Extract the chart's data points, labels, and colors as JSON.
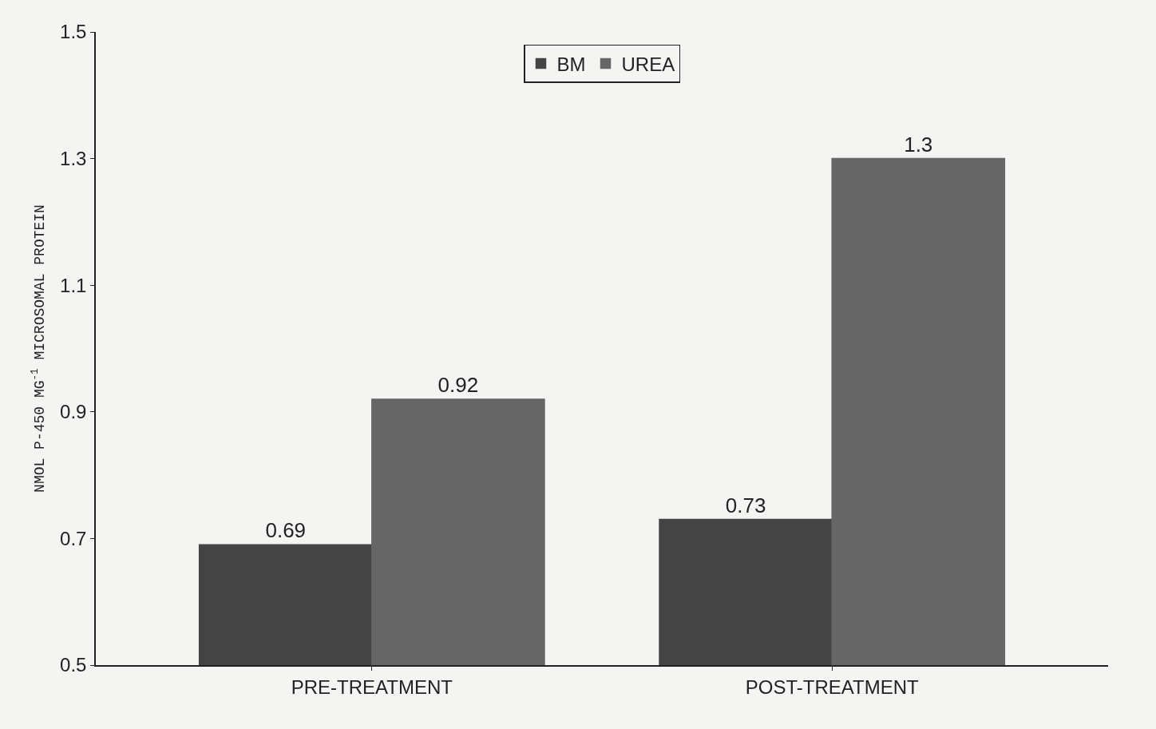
{
  "chart_data": {
    "type": "bar",
    "ylabel": "NMOL P-450 MG$^{-1}$ MICROSOMAL PROTEIN",
    "categories": [
      "PRE-TREATMENT",
      "POST-TREATMENT"
    ],
    "series": [
      {
        "name": "BM",
        "color": "#444444",
        "values": [
          0.69,
          0.73
        ]
      },
      {
        "name": "UREA",
        "color": "#666666",
        "values": [
          0.92,
          1.3
        ]
      }
    ],
    "ylim": [
      0.5,
      1.5
    ],
    "yticks": [
      0.5,
      0.7,
      0.9,
      1.1,
      1.3,
      1.5
    ],
    "data_labels": true,
    "grid": false,
    "legend": "top"
  }
}
